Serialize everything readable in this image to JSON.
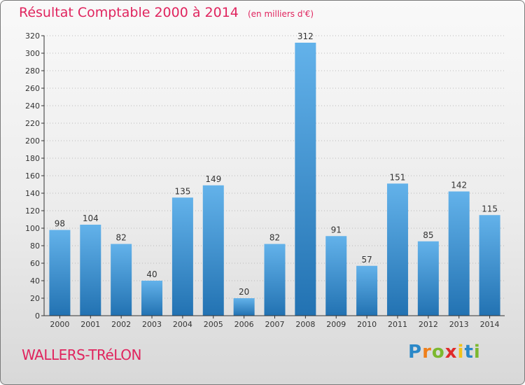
{
  "title": "Résultat Comptable 2000 à 2014",
  "unit_note": "(en milliers d'€)",
  "commune": "WALLERS-TRéLON",
  "logo": {
    "letters": [
      "P",
      "r",
      "o",
      "x",
      "i",
      "t",
      "i"
    ],
    "colors": [
      "#2a88c8",
      "#ef7f1a",
      "#7cb82f",
      "#e02a2a",
      "#f2c31a",
      "#2a88c8",
      "#7cb82f"
    ]
  },
  "colors": {
    "accent": "#e0245e",
    "bar_top": "#63b2ea",
    "bar_bottom": "#2272b2",
    "grid": "#b9b9b9",
    "axis": "#333333"
  },
  "chart_data": {
    "type": "bar",
    "title": "Résultat Comptable 2000 à 2014",
    "xlabel": "",
    "ylabel": "",
    "categories": [
      "2000",
      "2001",
      "2002",
      "2003",
      "2004",
      "2005",
      "2006",
      "2007",
      "2008",
      "2009",
      "2010",
      "2011",
      "2012",
      "2013",
      "2014"
    ],
    "values": [
      98,
      104,
      82,
      40,
      135,
      149,
      20,
      82,
      312,
      91,
      57,
      151,
      85,
      142,
      115
    ],
    "ylim": [
      0,
      320
    ],
    "yticks": [
      0,
      20,
      40,
      60,
      80,
      100,
      120,
      140,
      160,
      180,
      200,
      220,
      240,
      260,
      280,
      300,
      320
    ],
    "grid": true
  }
}
